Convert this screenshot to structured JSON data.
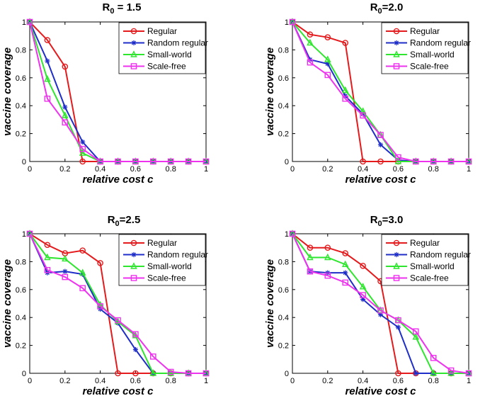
{
  "chart_data": [
    {
      "type": "line",
      "title_main": "R",
      "title_sub": "0",
      "title_rest": " = 1.5",
      "xlabel": "relative cost c",
      "ylabel": "vaccine coverage",
      "xlim": [
        0,
        1
      ],
      "ylim": [
        0,
        1
      ],
      "xticks": [
        "0",
        "0.2",
        "0.4",
        "0.6",
        "0.8",
        "1"
      ],
      "yticks": [
        "0",
        "0.2",
        "0.4",
        "0.6",
        "0.8",
        "1"
      ],
      "x": [
        0,
        0.1,
        0.2,
        0.3,
        0.4,
        0.5,
        0.6,
        0.7,
        0.8,
        0.9,
        1.0
      ],
      "series": [
        {
          "name": "Regular",
          "color": "#e41a1c",
          "marker": "circle",
          "values": [
            1.0,
            0.87,
            0.68,
            0.0,
            0.0,
            0.0,
            0.0,
            0.0,
            0.0,
            0.0,
            0.0
          ]
        },
        {
          "name": "Random regular",
          "color": "#1f2ec8",
          "marker": "star",
          "values": [
            1.0,
            0.72,
            0.39,
            0.14,
            0.0,
            0.0,
            0.0,
            0.0,
            0.0,
            0.0,
            0.0
          ]
        },
        {
          "name": "Small-world",
          "color": "#2ee62e",
          "marker": "triangle",
          "values": [
            1.0,
            0.59,
            0.33,
            0.06,
            0.0,
            0.0,
            0.0,
            0.0,
            0.0,
            0.0,
            0.0
          ]
        },
        {
          "name": "Scale-free",
          "color": "#ee33ee",
          "marker": "square",
          "values": [
            1.0,
            0.45,
            0.28,
            0.09,
            0.0,
            0.0,
            0.0,
            0.0,
            0.0,
            0.0,
            0.0
          ]
        }
      ]
    },
    {
      "type": "line",
      "title_main": "R",
      "title_sub": "0",
      "title_rest": "=2.0",
      "xlabel": "relative cost c",
      "ylabel": "vaccine coverage",
      "xlim": [
        0,
        1
      ],
      "ylim": [
        0,
        1
      ],
      "xticks": [
        "0",
        "0.2",
        "0.4",
        "0.6",
        "0.8",
        "1"
      ],
      "yticks": [
        "0",
        "0.2",
        "0.4",
        "0.6",
        "0.8",
        "1"
      ],
      "x": [
        0,
        0.1,
        0.2,
        0.3,
        0.4,
        0.5,
        0.6,
        0.7,
        0.8,
        0.9,
        1.0
      ],
      "series": [
        {
          "name": "Regular",
          "color": "#e41a1c",
          "marker": "circle",
          "values": [
            1.0,
            0.91,
            0.89,
            0.85,
            0.0,
            0.0,
            0.0,
            0.0,
            0.0,
            0.0,
            0.0
          ]
        },
        {
          "name": "Random regular",
          "color": "#1f2ec8",
          "marker": "star",
          "values": [
            1.0,
            0.73,
            0.7,
            0.47,
            0.34,
            0.12,
            0.01,
            0.0,
            0.0,
            0.0,
            0.0
          ]
        },
        {
          "name": "Small-world",
          "color": "#2ee62e",
          "marker": "triangle",
          "values": [
            1.0,
            0.85,
            0.73,
            0.51,
            0.36,
            0.19,
            0.0,
            0.0,
            0.0,
            0.0,
            0.0
          ]
        },
        {
          "name": "Scale-free",
          "color": "#ee33ee",
          "marker": "square",
          "values": [
            1.0,
            0.71,
            0.62,
            0.45,
            0.33,
            0.19,
            0.03,
            0.0,
            0.0,
            0.0,
            0.0
          ]
        }
      ]
    },
    {
      "type": "line",
      "title_main": "R",
      "title_sub": "0",
      "title_rest": "=2.5",
      "xlabel": "relative cost c",
      "ylabel": "vaccine coverage",
      "xlim": [
        0,
        1
      ],
      "ylim": [
        0,
        1
      ],
      "xticks": [
        "0",
        "0.2",
        "0.4",
        "0.6",
        "0.8",
        "1"
      ],
      "yticks": [
        "0",
        "0.2",
        "0.4",
        "0.6",
        "0.8",
        "1"
      ],
      "x": [
        0,
        0.1,
        0.2,
        0.3,
        0.4,
        0.5,
        0.6,
        0.7,
        0.8,
        0.9,
        1.0
      ],
      "series": [
        {
          "name": "Regular",
          "color": "#e41a1c",
          "marker": "circle",
          "values": [
            1.0,
            0.92,
            0.86,
            0.88,
            0.79,
            0.0,
            0.0,
            0.0,
            0.0,
            0.0,
            0.0
          ]
        },
        {
          "name": "Random regular",
          "color": "#1f2ec8",
          "marker": "star",
          "values": [
            1.0,
            0.72,
            0.73,
            0.71,
            0.46,
            0.36,
            0.17,
            0.0,
            0.0,
            0.0,
            0.0
          ]
        },
        {
          "name": "Small-world",
          "color": "#2ee62e",
          "marker": "triangle",
          "values": [
            1.0,
            0.83,
            0.82,
            0.72,
            0.49,
            0.37,
            0.27,
            0.0,
            0.0,
            0.0,
            0.0
          ]
        },
        {
          "name": "Scale-free",
          "color": "#ee33ee",
          "marker": "square",
          "values": [
            1.0,
            0.74,
            0.69,
            0.61,
            0.48,
            0.38,
            0.28,
            0.12,
            0.01,
            0.0,
            0.0
          ]
        }
      ]
    },
    {
      "type": "line",
      "title_main": "R",
      "title_sub": "0",
      "title_rest": "=3.0",
      "xlabel": "relative cost c",
      "ylabel": "vaccine coverage",
      "xlim": [
        0,
        1
      ],
      "ylim": [
        0,
        1
      ],
      "xticks": [
        "0",
        "0.2",
        "0.4",
        "0.6",
        "0.8",
        "1"
      ],
      "yticks": [
        "0",
        "0.2",
        "0.4",
        "0.6",
        "0.8",
        "1"
      ],
      "x": [
        0,
        0.1,
        0.2,
        0.3,
        0.4,
        0.5,
        0.6,
        0.7,
        0.8,
        0.9,
        1.0
      ],
      "series": [
        {
          "name": "Regular",
          "color": "#e41a1c",
          "marker": "circle",
          "values": [
            1.0,
            0.9,
            0.9,
            0.86,
            0.77,
            0.66,
            0.0,
            0.0,
            0.0,
            0.0,
            0.0
          ]
        },
        {
          "name": "Random regular",
          "color": "#1f2ec8",
          "marker": "star",
          "values": [
            1.0,
            0.73,
            0.72,
            0.72,
            0.53,
            0.42,
            0.33,
            0.0,
            0.0,
            0.0,
            0.0
          ]
        },
        {
          "name": "Small-world",
          "color": "#2ee62e",
          "marker": "triangle",
          "values": [
            1.0,
            0.83,
            0.83,
            0.78,
            0.62,
            0.45,
            0.38,
            0.26,
            0.0,
            0.0,
            0.0
          ]
        },
        {
          "name": "Scale-free",
          "color": "#ee33ee",
          "marker": "square",
          "values": [
            1.0,
            0.73,
            0.7,
            0.65,
            0.56,
            0.45,
            0.38,
            0.3,
            0.11,
            0.02,
            0.0
          ]
        }
      ]
    }
  ]
}
